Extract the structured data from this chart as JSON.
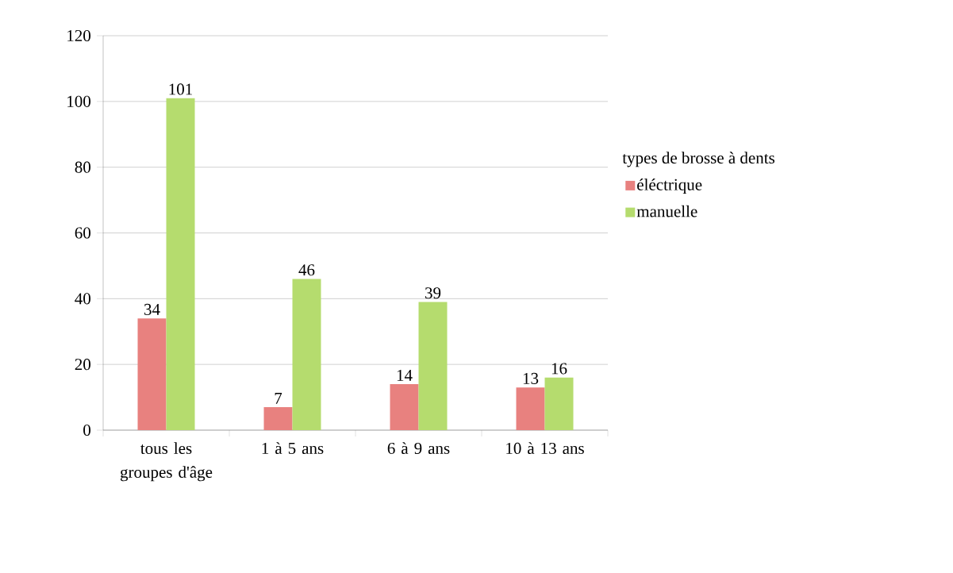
{
  "chart_data": {
    "type": "bar",
    "categories": [
      "tous les groupes d'âge",
      "1 à 5 ans",
      "6 à 9 ans",
      "10 à 13 ans"
    ],
    "series": [
      {
        "name": "éléctrique",
        "color": "#e8817f",
        "values": [
          34,
          7,
          14,
          13
        ]
      },
      {
        "name": "manuelle",
        "color": "#b5dc6e",
        "values": [
          101,
          46,
          39,
          16
        ]
      }
    ],
    "legend_title": "types de brosse à dents",
    "ylim": [
      0,
      120
    ],
    "yticks": [
      0,
      20,
      40,
      60,
      80,
      100,
      120
    ],
    "grid": "y",
    "legend": "right",
    "data_labels": true
  }
}
